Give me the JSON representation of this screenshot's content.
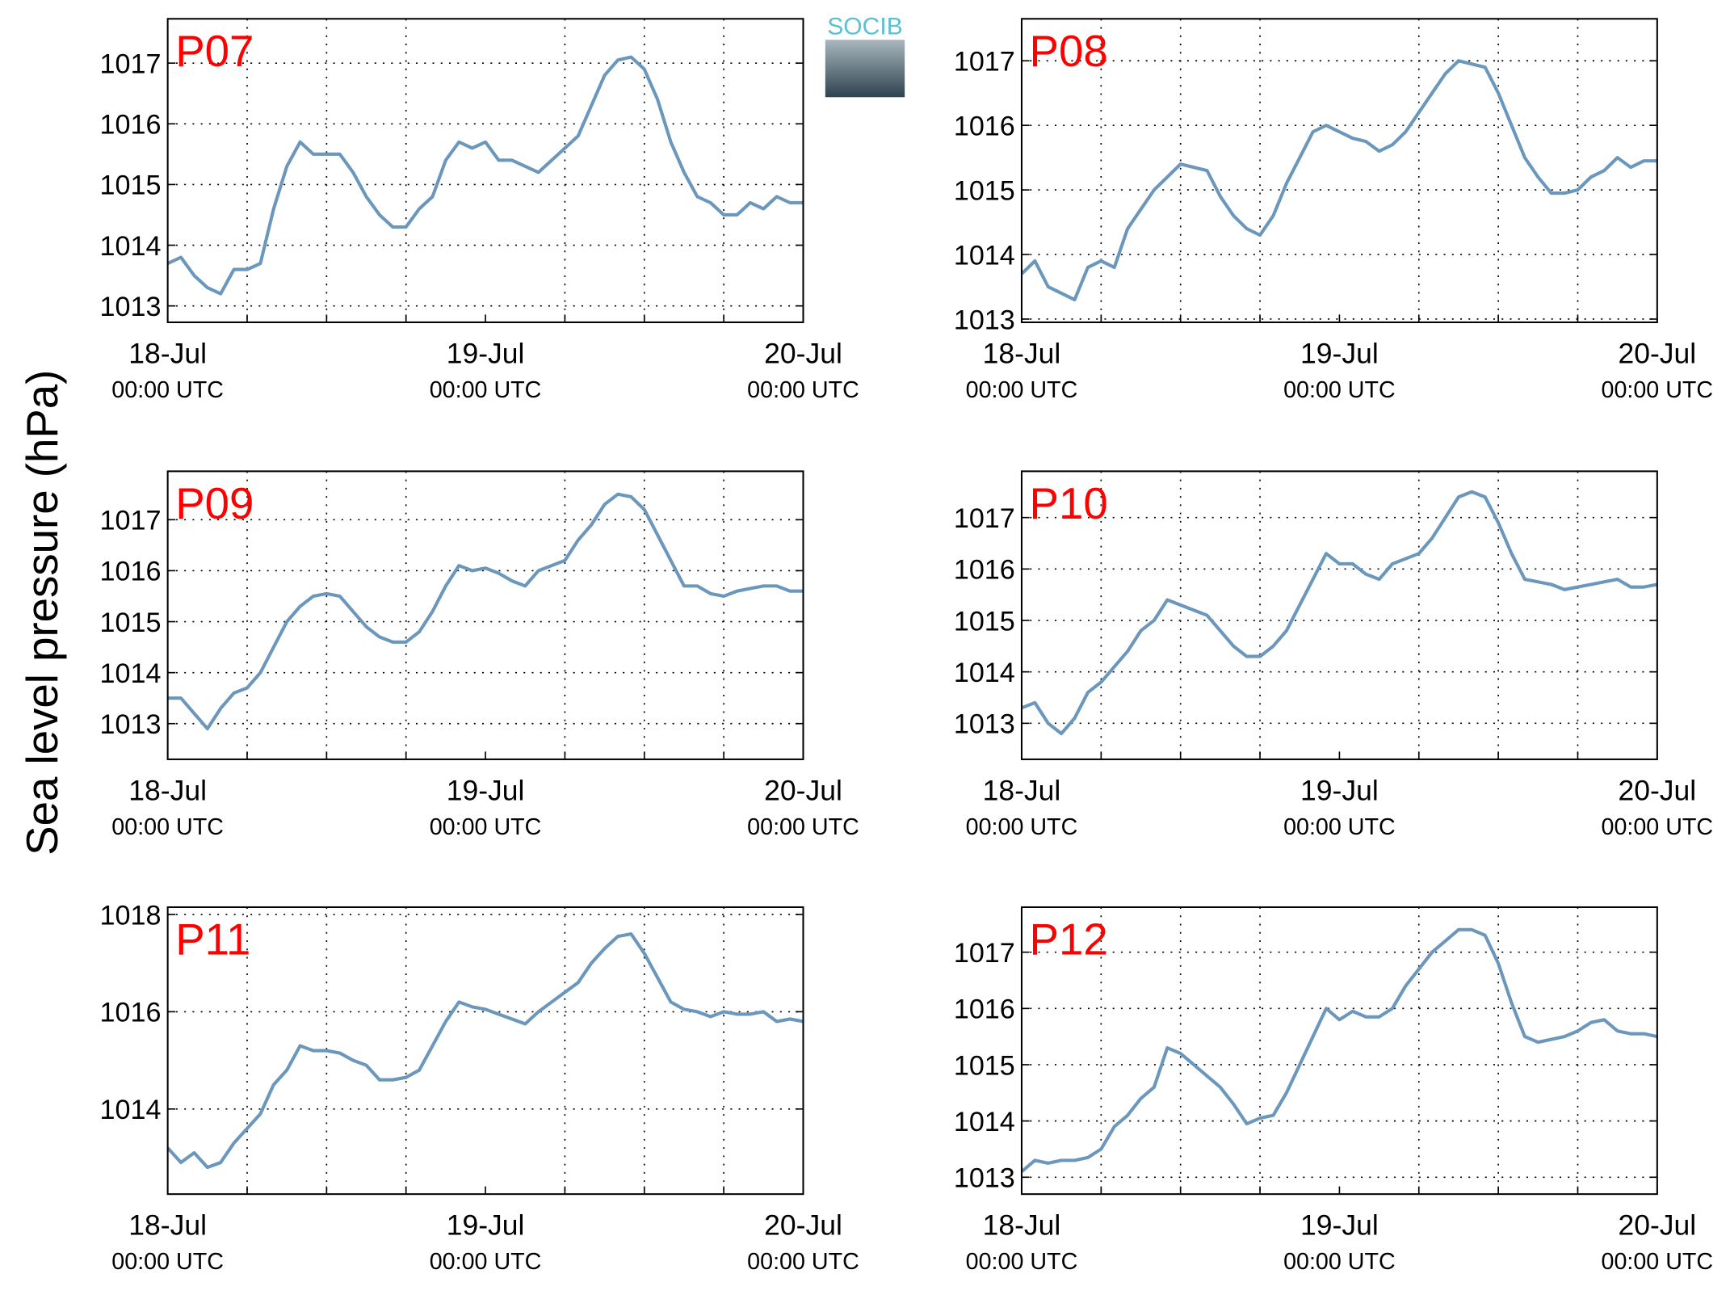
{
  "figure": {
    "ylabel": "Sea level pressure (hPa)",
    "logo": "SOCIB"
  },
  "chart_data": [
    {
      "type": "line",
      "title": "P07",
      "color": "#6a97bb",
      "grid": true,
      "x": [
        "18-Jul 00:00",
        "18-Jul 01:00",
        "18-Jul 02:00",
        "18-Jul 03:00",
        "18-Jul 04:00",
        "18-Jul 05:00",
        "18-Jul 06:00",
        "18-Jul 07:00",
        "18-Jul 08:00",
        "18-Jul 09:00",
        "18-Jul 10:00",
        "18-Jul 11:00",
        "18-Jul 12:00",
        "18-Jul 13:00",
        "18-Jul 14:00",
        "18-Jul 15:00",
        "18-Jul 16:00",
        "18-Jul 17:00",
        "18-Jul 18:00",
        "18-Jul 19:00",
        "18-Jul 20:00",
        "18-Jul 21:00",
        "18-Jul 22:00",
        "18-Jul 23:00",
        "19-Jul 00:00",
        "19-Jul 01:00",
        "19-Jul 02:00",
        "19-Jul 03:00",
        "19-Jul 04:00",
        "19-Jul 05:00",
        "19-Jul 06:00",
        "19-Jul 07:00",
        "19-Jul 08:00",
        "19-Jul 09:00",
        "19-Jul 10:00",
        "19-Jul 11:00",
        "19-Jul 12:00",
        "19-Jul 13:00",
        "19-Jul 14:00",
        "19-Jul 15:00",
        "19-Jul 16:00",
        "19-Jul 17:00",
        "19-Jul 18:00",
        "19-Jul 19:00",
        "19-Jul 20:00",
        "19-Jul 21:00",
        "19-Jul 22:00",
        "19-Jul 23:00",
        "20-Jul 00:00"
      ],
      "values": [
        1013.7,
        1013.8,
        1013.5,
        1013.3,
        1013.2,
        1013.6,
        1013.6,
        1013.7,
        1014.6,
        1015.3,
        1015.7,
        1015.5,
        1015.5,
        1015.5,
        1015.2,
        1014.8,
        1014.5,
        1014.3,
        1014.3,
        1014.6,
        1014.8,
        1015.4,
        1015.7,
        1015.6,
        1015.7,
        1015.4,
        1015.4,
        1015.3,
        1015.2,
        1015.4,
        1015.6,
        1015.8,
        1016.3,
        1016.8,
        1017.05,
        1017.1,
        1016.9,
        1016.4,
        1015.7,
        1015.2,
        1014.8,
        1014.7,
        1014.5,
        1014.5,
        1014.7,
        1014.6,
        1014.8,
        1014.7,
        1014.7
      ],
      "xlim": [
        "18-Jul 00:00",
        "20-Jul 00:00"
      ],
      "xticks": [
        {
          "value": "18-Jul 00:00",
          "label": "18-Jul",
          "sublabel": "00:00 UTC"
        },
        {
          "value": "19-Jul 00:00",
          "label": "19-Jul",
          "sublabel": "00:00 UTC"
        },
        {
          "value": "20-Jul 00:00",
          "label": "20-Jul",
          "sublabel": "00:00 UTC"
        }
      ],
      "xgrid": [
        "18-Jul 06:00",
        "18-Jul 12:00",
        "18-Jul 18:00",
        "19-Jul 06:00",
        "19-Jul 12:00",
        "19-Jul 18:00"
      ],
      "ylim": [
        1012.73,
        1017.73
      ],
      "yticks": [
        1013,
        1014,
        1015,
        1016,
        1017
      ]
    },
    {
      "type": "line",
      "title": "P08",
      "color": "#6a97bb",
      "grid": true,
      "x": [
        "18-Jul 00:00",
        "18-Jul 01:00",
        "18-Jul 02:00",
        "18-Jul 03:00",
        "18-Jul 04:00",
        "18-Jul 05:00",
        "18-Jul 06:00",
        "18-Jul 07:00",
        "18-Jul 08:00",
        "18-Jul 09:00",
        "18-Jul 10:00",
        "18-Jul 11:00",
        "18-Jul 12:00",
        "18-Jul 13:00",
        "18-Jul 14:00",
        "18-Jul 15:00",
        "18-Jul 16:00",
        "18-Jul 17:00",
        "18-Jul 18:00",
        "18-Jul 19:00",
        "18-Jul 20:00",
        "18-Jul 21:00",
        "18-Jul 22:00",
        "18-Jul 23:00",
        "19-Jul 00:00",
        "19-Jul 01:00",
        "19-Jul 02:00",
        "19-Jul 03:00",
        "19-Jul 04:00",
        "19-Jul 05:00",
        "19-Jul 06:00",
        "19-Jul 07:00",
        "19-Jul 08:00",
        "19-Jul 09:00",
        "19-Jul 10:00",
        "19-Jul 11:00",
        "19-Jul 12:00",
        "19-Jul 13:00",
        "19-Jul 14:00",
        "19-Jul 15:00",
        "19-Jul 16:00",
        "19-Jul 17:00",
        "19-Jul 18:00",
        "19-Jul 19:00",
        "19-Jul 20:00",
        "19-Jul 21:00",
        "19-Jul 22:00",
        "19-Jul 23:00",
        "20-Jul 00:00"
      ],
      "values": [
        1013.7,
        1013.9,
        1013.5,
        1013.4,
        1013.3,
        1013.8,
        1013.9,
        1013.8,
        1014.4,
        1014.7,
        1015.0,
        1015.2,
        1015.4,
        1015.35,
        1015.3,
        1014.9,
        1014.6,
        1014.4,
        1014.3,
        1014.6,
        1015.1,
        1015.5,
        1015.9,
        1016.0,
        1015.9,
        1015.8,
        1015.75,
        1015.6,
        1015.7,
        1015.9,
        1016.2,
        1016.5,
        1016.8,
        1017.0,
        1016.95,
        1016.9,
        1016.5,
        1016.0,
        1015.5,
        1015.2,
        1014.95,
        1014.95,
        1015.0,
        1015.2,
        1015.3,
        1015.5,
        1015.35,
        1015.45,
        1015.45
      ],
      "xlim": [
        "18-Jul 00:00",
        "20-Jul 00:00"
      ],
      "xticks": [
        {
          "value": "18-Jul 00:00",
          "label": "18-Jul",
          "sublabel": "00:00 UTC"
        },
        {
          "value": "19-Jul 00:00",
          "label": "19-Jul",
          "sublabel": "00:00 UTC"
        },
        {
          "value": "20-Jul 00:00",
          "label": "20-Jul",
          "sublabel": "00:00 UTC"
        }
      ],
      "xgrid": [
        "18-Jul 06:00",
        "18-Jul 12:00",
        "18-Jul 18:00",
        "19-Jul 06:00",
        "19-Jul 12:00",
        "19-Jul 18:00"
      ],
      "ylim": [
        1012.95,
        1017.65
      ],
      "yticks": [
        1013,
        1014,
        1015,
        1016,
        1017
      ]
    },
    {
      "type": "line",
      "title": "P09",
      "color": "#6a97bb",
      "grid": true,
      "x": [
        "18-Jul 00:00",
        "18-Jul 01:00",
        "18-Jul 02:00",
        "18-Jul 03:00",
        "18-Jul 04:00",
        "18-Jul 05:00",
        "18-Jul 06:00",
        "18-Jul 07:00",
        "18-Jul 08:00",
        "18-Jul 09:00",
        "18-Jul 10:00",
        "18-Jul 11:00",
        "18-Jul 12:00",
        "18-Jul 13:00",
        "18-Jul 14:00",
        "18-Jul 15:00",
        "18-Jul 16:00",
        "18-Jul 17:00",
        "18-Jul 18:00",
        "18-Jul 19:00",
        "18-Jul 20:00",
        "18-Jul 21:00",
        "18-Jul 22:00",
        "18-Jul 23:00",
        "19-Jul 00:00",
        "19-Jul 01:00",
        "19-Jul 02:00",
        "19-Jul 03:00",
        "19-Jul 04:00",
        "19-Jul 05:00",
        "19-Jul 06:00",
        "19-Jul 07:00",
        "19-Jul 08:00",
        "19-Jul 09:00",
        "19-Jul 10:00",
        "19-Jul 11:00",
        "19-Jul 12:00",
        "19-Jul 13:00",
        "19-Jul 14:00",
        "19-Jul 15:00",
        "19-Jul 16:00",
        "19-Jul 17:00",
        "19-Jul 18:00",
        "19-Jul 19:00",
        "19-Jul 20:00",
        "19-Jul 21:00",
        "19-Jul 22:00",
        "19-Jul 23:00",
        "20-Jul 00:00"
      ],
      "values": [
        1013.5,
        1013.5,
        1013.2,
        1012.9,
        1013.3,
        1013.6,
        1013.7,
        1014.0,
        1014.5,
        1015.0,
        1015.3,
        1015.5,
        1015.55,
        1015.5,
        1015.2,
        1014.9,
        1014.7,
        1014.6,
        1014.6,
        1014.8,
        1015.2,
        1015.7,
        1016.1,
        1016.0,
        1016.05,
        1015.95,
        1015.8,
        1015.7,
        1016.0,
        1016.1,
        1016.2,
        1016.6,
        1016.9,
        1017.3,
        1017.5,
        1017.45,
        1017.2,
        1016.7,
        1016.2,
        1015.7,
        1015.7,
        1015.55,
        1015.5,
        1015.6,
        1015.65,
        1015.7,
        1015.7,
        1015.6,
        1015.6
      ],
      "xlim": [
        "18-Jul 00:00",
        "20-Jul 00:00"
      ],
      "xticks": [
        {
          "value": "18-Jul 00:00",
          "label": "18-Jul",
          "sublabel": "00:00 UTC"
        },
        {
          "value": "19-Jul 00:00",
          "label": "19-Jul",
          "sublabel": "00:00 UTC"
        },
        {
          "value": "20-Jul 00:00",
          "label": "20-Jul",
          "sublabel": "00:00 UTC"
        }
      ],
      "xgrid": [
        "18-Jul 06:00",
        "18-Jul 12:00",
        "18-Jul 18:00",
        "19-Jul 06:00",
        "19-Jul 12:00",
        "19-Jul 18:00"
      ],
      "ylim": [
        1012.3,
        1017.95
      ],
      "yticks": [
        1013,
        1014,
        1015,
        1016,
        1017
      ]
    },
    {
      "type": "line",
      "title": "P10",
      "color": "#6a97bb",
      "grid": true,
      "x": [
        "18-Jul 00:00",
        "18-Jul 01:00",
        "18-Jul 02:00",
        "18-Jul 03:00",
        "18-Jul 04:00",
        "18-Jul 05:00",
        "18-Jul 06:00",
        "18-Jul 07:00",
        "18-Jul 08:00",
        "18-Jul 09:00",
        "18-Jul 10:00",
        "18-Jul 11:00",
        "18-Jul 12:00",
        "18-Jul 13:00",
        "18-Jul 14:00",
        "18-Jul 15:00",
        "18-Jul 16:00",
        "18-Jul 17:00",
        "18-Jul 18:00",
        "18-Jul 19:00",
        "18-Jul 20:00",
        "18-Jul 21:00",
        "18-Jul 22:00",
        "18-Jul 23:00",
        "19-Jul 00:00",
        "19-Jul 01:00",
        "19-Jul 02:00",
        "19-Jul 03:00",
        "19-Jul 04:00",
        "19-Jul 05:00",
        "19-Jul 06:00",
        "19-Jul 07:00",
        "19-Jul 08:00",
        "19-Jul 09:00",
        "19-Jul 10:00",
        "19-Jul 11:00",
        "19-Jul 12:00",
        "19-Jul 13:00",
        "19-Jul 14:00",
        "19-Jul 15:00",
        "19-Jul 16:00",
        "19-Jul 17:00",
        "19-Jul 18:00",
        "19-Jul 19:00",
        "19-Jul 20:00",
        "19-Jul 21:00",
        "19-Jul 22:00",
        "19-Jul 23:00",
        "20-Jul 00:00"
      ],
      "values": [
        1013.3,
        1013.4,
        1013.0,
        1012.8,
        1013.1,
        1013.6,
        1013.8,
        1014.1,
        1014.4,
        1014.8,
        1015.0,
        1015.4,
        1015.3,
        1015.2,
        1015.1,
        1014.8,
        1014.5,
        1014.3,
        1014.3,
        1014.5,
        1014.8,
        1015.3,
        1015.8,
        1016.3,
        1016.1,
        1016.1,
        1015.9,
        1015.8,
        1016.1,
        1016.2,
        1016.3,
        1016.6,
        1017.0,
        1017.4,
        1017.5,
        1017.4,
        1016.9,
        1016.3,
        1015.8,
        1015.75,
        1015.7,
        1015.6,
        1015.65,
        1015.7,
        1015.75,
        1015.8,
        1015.65,
        1015.65,
        1015.7
      ],
      "xlim": [
        "18-Jul 00:00",
        "20-Jul 00:00"
      ],
      "xticks": [
        {
          "value": "18-Jul 00:00",
          "label": "18-Jul",
          "sublabel": "00:00 UTC"
        },
        {
          "value": "19-Jul 00:00",
          "label": "19-Jul",
          "sublabel": "00:00 UTC"
        },
        {
          "value": "20-Jul 00:00",
          "label": "20-Jul",
          "sublabel": "00:00 UTC"
        }
      ],
      "xgrid": [
        "18-Jul 06:00",
        "18-Jul 12:00",
        "18-Jul 18:00",
        "19-Jul 06:00",
        "19-Jul 12:00",
        "19-Jul 18:00"
      ],
      "ylim": [
        1012.3,
        1017.9
      ],
      "yticks": [
        1013,
        1014,
        1015,
        1016,
        1017
      ]
    },
    {
      "type": "line",
      "title": "P11",
      "color": "#6a97bb",
      "grid": true,
      "x": [
        "18-Jul 00:00",
        "18-Jul 01:00",
        "18-Jul 02:00",
        "18-Jul 03:00",
        "18-Jul 04:00",
        "18-Jul 05:00",
        "18-Jul 06:00",
        "18-Jul 07:00",
        "18-Jul 08:00",
        "18-Jul 09:00",
        "18-Jul 10:00",
        "18-Jul 11:00",
        "18-Jul 12:00",
        "18-Jul 13:00",
        "18-Jul 14:00",
        "18-Jul 15:00",
        "18-Jul 16:00",
        "18-Jul 17:00",
        "18-Jul 18:00",
        "18-Jul 19:00",
        "18-Jul 20:00",
        "18-Jul 21:00",
        "18-Jul 22:00",
        "18-Jul 23:00",
        "19-Jul 00:00",
        "19-Jul 01:00",
        "19-Jul 02:00",
        "19-Jul 03:00",
        "19-Jul 04:00",
        "19-Jul 05:00",
        "19-Jul 06:00",
        "19-Jul 07:00",
        "19-Jul 08:00",
        "19-Jul 09:00",
        "19-Jul 10:00",
        "19-Jul 11:00",
        "19-Jul 12:00",
        "19-Jul 13:00",
        "19-Jul 14:00",
        "19-Jul 15:00",
        "19-Jul 16:00",
        "19-Jul 17:00",
        "19-Jul 18:00",
        "19-Jul 19:00",
        "19-Jul 20:00",
        "19-Jul 21:00",
        "19-Jul 22:00",
        "19-Jul 23:00",
        "20-Jul 00:00"
      ],
      "values": [
        1013.2,
        1012.9,
        1013.1,
        1012.8,
        1012.9,
        1013.3,
        1013.6,
        1013.9,
        1014.5,
        1014.8,
        1015.3,
        1015.2,
        1015.2,
        1015.15,
        1015.0,
        1014.9,
        1014.6,
        1014.6,
        1014.65,
        1014.8,
        1015.3,
        1015.8,
        1016.2,
        1016.1,
        1016.05,
        1015.95,
        1015.85,
        1015.75,
        1016.0,
        1016.2,
        1016.4,
        1016.6,
        1017.0,
        1017.3,
        1017.55,
        1017.6,
        1017.2,
        1016.7,
        1016.2,
        1016.05,
        1016.0,
        1015.9,
        1016.0,
        1015.95,
        1015.95,
        1016.0,
        1015.8,
        1015.85,
        1015.8
      ],
      "xlim": [
        "18-Jul 00:00",
        "20-Jul 00:00"
      ],
      "xticks": [
        {
          "value": "18-Jul 00:00",
          "label": "18-Jul",
          "sublabel": "00:00 UTC"
        },
        {
          "value": "19-Jul 00:00",
          "label": "19-Jul",
          "sublabel": "00:00 UTC"
        },
        {
          "value": "20-Jul 00:00",
          "label": "20-Jul",
          "sublabel": "00:00 UTC"
        }
      ],
      "xgrid": [
        "18-Jul 06:00",
        "18-Jul 12:00",
        "18-Jul 18:00",
        "19-Jul 06:00",
        "19-Jul 12:00",
        "19-Jul 18:00"
      ],
      "ylim": [
        1012.25,
        1018.15
      ],
      "yticks": [
        1014,
        1016,
        1018
      ]
    },
    {
      "type": "line",
      "title": "P12",
      "color": "#6a97bb",
      "grid": true,
      "x": [
        "18-Jul 00:00",
        "18-Jul 01:00",
        "18-Jul 02:00",
        "18-Jul 03:00",
        "18-Jul 04:00",
        "18-Jul 05:00",
        "18-Jul 06:00",
        "18-Jul 07:00",
        "18-Jul 08:00",
        "18-Jul 09:00",
        "18-Jul 10:00",
        "18-Jul 11:00",
        "18-Jul 12:00",
        "18-Jul 13:00",
        "18-Jul 14:00",
        "18-Jul 15:00",
        "18-Jul 16:00",
        "18-Jul 17:00",
        "18-Jul 18:00",
        "18-Jul 19:00",
        "18-Jul 20:00",
        "18-Jul 21:00",
        "18-Jul 22:00",
        "18-Jul 23:00",
        "19-Jul 00:00",
        "19-Jul 01:00",
        "19-Jul 02:00",
        "19-Jul 03:00",
        "19-Jul 04:00",
        "19-Jul 05:00",
        "19-Jul 06:00",
        "19-Jul 07:00",
        "19-Jul 08:00",
        "19-Jul 09:00",
        "19-Jul 10:00",
        "19-Jul 11:00",
        "19-Jul 12:00",
        "19-Jul 13:00",
        "19-Jul 14:00",
        "19-Jul 15:00",
        "19-Jul 16:00",
        "19-Jul 17:00",
        "19-Jul 18:00",
        "19-Jul 19:00",
        "19-Jul 20:00",
        "19-Jul 21:00",
        "19-Jul 22:00",
        "19-Jul 23:00",
        "20-Jul 00:00"
      ],
      "values": [
        1013.1,
        1013.3,
        1013.25,
        1013.3,
        1013.3,
        1013.35,
        1013.5,
        1013.9,
        1014.1,
        1014.4,
        1014.6,
        1015.3,
        1015.2,
        1015.0,
        1014.8,
        1014.6,
        1014.3,
        1013.95,
        1014.05,
        1014.1,
        1014.5,
        1015.0,
        1015.5,
        1016.0,
        1015.8,
        1015.95,
        1015.85,
        1015.85,
        1016.0,
        1016.4,
        1016.7,
        1017.0,
        1017.2,
        1017.4,
        1017.4,
        1017.3,
        1016.8,
        1016.1,
        1015.5,
        1015.4,
        1015.45,
        1015.5,
        1015.6,
        1015.75,
        1015.8,
        1015.6,
        1015.55,
        1015.55,
        1015.5
      ],
      "xlim": [
        "18-Jul 00:00",
        "20-Jul 00:00"
      ],
      "xticks": [
        {
          "value": "18-Jul 00:00",
          "label": "18-Jul",
          "sublabel": "00:00 UTC"
        },
        {
          "value": "19-Jul 00:00",
          "label": "19-Jul",
          "sublabel": "00:00 UTC"
        },
        {
          "value": "20-Jul 00:00",
          "label": "20-Jul",
          "sublabel": "00:00 UTC"
        }
      ],
      "xgrid": [
        "18-Jul 06:00",
        "18-Jul 12:00",
        "18-Jul 18:00",
        "19-Jul 06:00",
        "19-Jul 12:00",
        "19-Jul 18:00"
      ],
      "ylim": [
        1012.7,
        1017.8
      ],
      "yticks": [
        1013,
        1014,
        1015,
        1016,
        1017
      ]
    }
  ]
}
